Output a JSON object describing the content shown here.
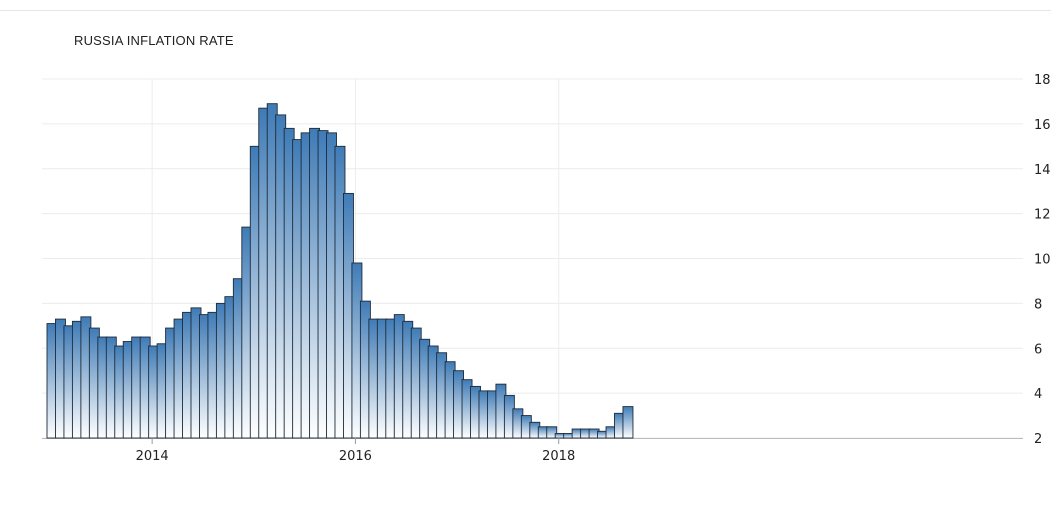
{
  "chart_data": {
    "type": "bar",
    "title": "RUSSIA INFLATION RATE",
    "xlabel": "",
    "ylabel": "",
    "ylim": [
      2,
      18
    ],
    "y_ticks": [
      2,
      4,
      6,
      8,
      10,
      12,
      14,
      16,
      18
    ],
    "x_ticks": [
      "2014",
      "2016",
      "2018"
    ],
    "grid": true,
    "y_axis_side": "right",
    "bar_color_top": "#3f7bb6",
    "bar_color_bottom": "#ffffff",
    "bar_border": "#1d2b3a",
    "categories": [
      "2013-01",
      "2013-02",
      "2013-03",
      "2013-04",
      "2013-05",
      "2013-06",
      "2013-07",
      "2013-08",
      "2013-09",
      "2013-10",
      "2013-11",
      "2013-12",
      "2014-01",
      "2014-02",
      "2014-03",
      "2014-04",
      "2014-05",
      "2014-06",
      "2014-07",
      "2014-08",
      "2014-09",
      "2014-10",
      "2014-11",
      "2014-12",
      "2015-01",
      "2015-02",
      "2015-03",
      "2015-04",
      "2015-05",
      "2015-06",
      "2015-07",
      "2015-08",
      "2015-09",
      "2015-10",
      "2015-11",
      "2015-12",
      "2016-01",
      "2016-02",
      "2016-03",
      "2016-04",
      "2016-05",
      "2016-06",
      "2016-07",
      "2016-08",
      "2016-09",
      "2016-10",
      "2016-11",
      "2016-12",
      "2017-01",
      "2017-02",
      "2017-03",
      "2017-04",
      "2017-05",
      "2017-06",
      "2017-07",
      "2017-08",
      "2017-09",
      "2017-10",
      "2017-11",
      "2017-12",
      "2018-01",
      "2018-02",
      "2018-03",
      "2018-04",
      "2018-05",
      "2018-06",
      "2018-07",
      "2018-08",
      "2018-09"
    ],
    "values": [
      7.1,
      7.3,
      7.0,
      7.2,
      7.4,
      6.9,
      6.5,
      6.5,
      6.1,
      6.3,
      6.5,
      6.5,
      6.1,
      6.2,
      6.9,
      7.3,
      7.6,
      7.8,
      7.5,
      7.6,
      8.0,
      8.3,
      9.1,
      11.4,
      15.0,
      16.7,
      16.9,
      16.4,
      15.8,
      15.3,
      15.6,
      15.8,
      15.7,
      15.6,
      15.0,
      12.9,
      9.8,
      8.1,
      7.3,
      7.3,
      7.3,
      7.5,
      7.2,
      6.9,
      6.4,
      6.1,
      5.8,
      5.4,
      5.0,
      4.6,
      4.3,
      4.1,
      4.1,
      4.4,
      3.9,
      3.3,
      3.0,
      2.7,
      2.5,
      2.5,
      2.2,
      2.2,
      2.4,
      2.4,
      2.4,
      2.3,
      2.5,
      3.1,
      3.4
    ]
  }
}
